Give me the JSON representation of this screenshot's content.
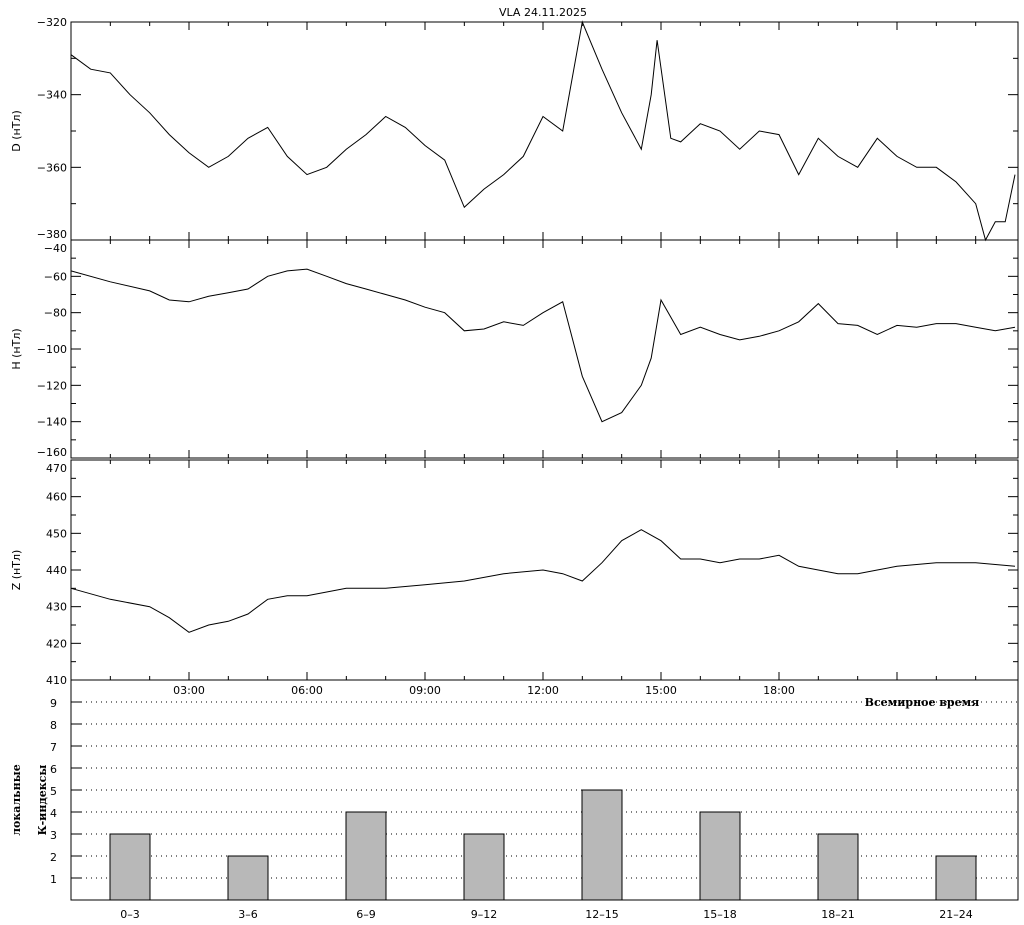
{
  "chart_data": [
    {
      "type": "line",
      "title": "VLA   24.11.2025",
      "ylabel": "D (нТл)",
      "ylim": [
        -380,
        -320
      ],
      "yticks": [
        -320,
        -340,
        -360,
        -380
      ],
      "xlim": [
        0,
        24
      ],
      "x": [
        0,
        0.5,
        1,
        1.5,
        2,
        2.5,
        3,
        3.5,
        4,
        4.5,
        5,
        5.5,
        6,
        6.5,
        7,
        7.5,
        8,
        8.5,
        9,
        9.5,
        10,
        10.5,
        11,
        11.5,
        12,
        12.5,
        13,
        13.5,
        14,
        14.5,
        14.75,
        14.9,
        15.25,
        15.5,
        16,
        16.5,
        17,
        17.5,
        18,
        18.5,
        19,
        19.5,
        20,
        20.5,
        21,
        21.5,
        22,
        22.5,
        23,
        23.25,
        23.5,
        23.75,
        24
      ],
      "values": [
        -329,
        -333,
        -334,
        -340,
        -345,
        -351,
        -356,
        -360,
        -357,
        -352,
        -349,
        -357,
        -362,
        -360,
        -355,
        -351,
        -346,
        -349,
        -354,
        -358,
        -371,
        -366,
        -362,
        -357,
        -346,
        -350,
        -320,
        -333,
        -345,
        -355,
        -340,
        -325,
        -352,
        -353,
        -348,
        -350,
        -355,
        -350,
        -351,
        -362,
        -352,
        -357,
        -360,
        -352,
        -357,
        -360,
        -360,
        -364,
        -370,
        -380,
        -375,
        -375,
        -362
      ]
    },
    {
      "type": "line",
      "ylabel": "H (нТл)",
      "ylim": [
        -160,
        -40
      ],
      "yticks": [
        -40,
        -60,
        -80,
        -100,
        -120,
        -140,
        -160
      ],
      "xlim": [
        0,
        24
      ],
      "x": [
        0,
        1,
        2,
        2.5,
        3,
        3.5,
        4,
        4.5,
        5,
        5.5,
        6,
        6.5,
        7,
        7.5,
        8,
        8.5,
        9,
        9.5,
        10,
        10.5,
        11,
        11.5,
        12,
        12.5,
        13,
        13.5,
        14,
        14.5,
        14.75,
        15,
        15.5,
        16,
        16.5,
        17,
        17.5,
        18,
        18.5,
        19,
        19.5,
        20,
        20.5,
        21,
        21.5,
        22,
        22.5,
        23,
        23.5,
        24
      ],
      "values": [
        -57,
        -63,
        -68,
        -73,
        -74,
        -71,
        -69,
        -67,
        -60,
        -57,
        -56,
        -60,
        -64,
        -67,
        -70,
        -73,
        -77,
        -80,
        -90,
        -89,
        -85,
        -87,
        -80,
        -74,
        -115,
        -140,
        -135,
        -120,
        -105,
        -73,
        -92,
        -88,
        -92,
        -95,
        -93,
        -90,
        -85,
        -75,
        -86,
        -87,
        -92,
        -87,
        -88,
        -86,
        -86,
        -88,
        -90,
        -88
      ]
    },
    {
      "type": "line",
      "ylabel": "Z (нТл)",
      "ylim": [
        410,
        470
      ],
      "yticks": [
        410,
        420,
        430,
        440,
        450,
        460,
        470
      ],
      "xlim": [
        0,
        24
      ],
      "xticks": [
        "03:00",
        "06:00",
        "09:00",
        "12:00",
        "15:00",
        "18:00"
      ],
      "xtick_hours": [
        3,
        6,
        9,
        12,
        15,
        18
      ],
      "xlabel": "Всемирное время",
      "x": [
        0,
        1,
        2,
        2.5,
        3,
        3.5,
        4,
        4.5,
        5,
        5.5,
        6,
        6.5,
        7,
        7.5,
        8,
        9,
        10,
        11,
        12,
        12.5,
        13,
        13.5,
        14,
        14.5,
        15,
        15.5,
        16,
        16.5,
        17,
        17.5,
        18,
        18.5,
        19,
        19.5,
        20,
        20.5,
        21,
        22,
        23,
        24
      ],
      "values": [
        435,
        432,
        430,
        427,
        423,
        425,
        426,
        428,
        432,
        433,
        433,
        434,
        435,
        435,
        435,
        436,
        437,
        439,
        440,
        439,
        437,
        442,
        448,
        451,
        448,
        443,
        443,
        442,
        443,
        443,
        444,
        441,
        440,
        439,
        439,
        440,
        441,
        442,
        442,
        441
      ]
    },
    {
      "type": "bar",
      "ylabel": [
        "локальные",
        "К-индексы"
      ],
      "ylim": [
        0,
        10
      ],
      "yticks": [
        1,
        2,
        3,
        4,
        5,
        6,
        7,
        8,
        9
      ],
      "grid": "dotted horizontal",
      "categories": [
        "0–3",
        "3–6",
        "6–9",
        "9–12",
        "12–15",
        "15–18",
        "18–21",
        "21–24"
      ],
      "values": [
        3,
        2,
        4,
        3,
        5,
        4,
        3,
        2
      ],
      "bar_color": "#b8b8b8"
    }
  ]
}
